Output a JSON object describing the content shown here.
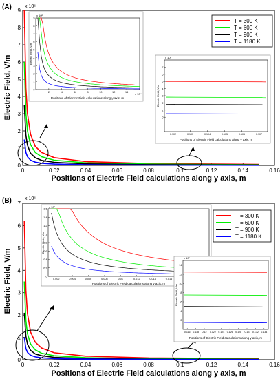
{
  "panels": [
    {
      "label": "(A)",
      "chart_data": {
        "type": "line",
        "xlabel": "Positions of Electric Field calculations along y axis, m",
        "ylabel": "Electric Field, V/m",
        "exponent": "x 10⁶",
        "xlim": [
          0,
          0.16
        ],
        "ylim": [
          0,
          9
        ],
        "xticks": [
          "0",
          "0.02",
          "0.04",
          "0.06",
          "0.08",
          "0.1",
          "0.12",
          "0.14",
          "0.16"
        ],
        "yticks": [
          "0",
          "1",
          "2",
          "3",
          "4",
          "5",
          "6",
          "7",
          "8",
          "9"
        ],
        "legend_position": "top-right",
        "series": [
          {
            "name": "T = 300 K",
            "color": "#ff0000",
            "x": [
              0.001,
              0.002,
              0.003,
              0.005,
              0.008,
              0.012,
              0.02,
              0.04,
              0.08,
              0.15
            ],
            "y": [
              9.0,
              4.5,
              3.0,
              1.8,
              1.1,
              0.75,
              0.45,
              0.22,
              0.11,
              0.06
            ]
          },
          {
            "name": "T = 600 K",
            "color": "#00ee00",
            "x": [
              0.001,
              0.002,
              0.003,
              0.005,
              0.008,
              0.012,
              0.02,
              0.04,
              0.08,
              0.15
            ],
            "y": [
              6.0,
              3.0,
              2.0,
              1.2,
              0.75,
              0.5,
              0.3,
              0.15,
              0.075,
              0.04
            ]
          },
          {
            "name": "T = 900 K",
            "color": "#000000",
            "x": [
              0.001,
              0.002,
              0.003,
              0.005,
              0.008,
              0.012,
              0.02,
              0.04,
              0.08,
              0.15
            ],
            "y": [
              3.5,
              1.75,
              1.17,
              0.7,
              0.44,
              0.29,
              0.18,
              0.09,
              0.045,
              0.025
            ]
          },
          {
            "name": "T = 1180 K",
            "color": "#0000ff",
            "x": [
              0.001,
              0.002,
              0.003,
              0.005,
              0.008,
              0.012,
              0.02,
              0.04,
              0.08,
              0.15
            ],
            "y": [
              1.5,
              0.75,
              0.5,
              0.3,
              0.19,
              0.125,
              0.075,
              0.04,
              0.02,
              0.01
            ]
          }
        ]
      },
      "inset_left": {
        "xlabel": "Positions of Electric Field calculations along y axis, m",
        "ylabel": "Electric Field, V/m",
        "exponent": "x 10⁶",
        "x_exponent": "x 10⁻³",
        "xlim": [
          0,
          16
        ],
        "ylim": [
          0,
          9
        ],
        "xticks": [
          "2",
          "4",
          "6",
          "8",
          "10",
          "12",
          "14"
        ],
        "yticks": [
          "0",
          "1",
          "2",
          "3",
          "4",
          "5",
          "6",
          "7",
          "8",
          "9"
        ]
      },
      "inset_right": {
        "xlabel": "Positions of Electric Field calculations along y axis, m",
        "ylabel": "Electric Field, V/m",
        "exponent": "x 10⁴",
        "xticks": [
          "0.102",
          "0.103",
          "0.104",
          "0.105",
          "0.106",
          "0.107"
        ],
        "yticks": [
          "0",
          "1",
          "2",
          "3",
          "4",
          "5",
          "6",
          "7"
        ],
        "levels": [
          5.0,
          2.8,
          1.8,
          0.5
        ]
      }
    },
    {
      "label": "(B)",
      "chart_data": {
        "type": "line",
        "xlabel": "Positions of Electric Field calculations along y axis, m",
        "ylabel": "Electric Field, V/m",
        "exponent": "x 10⁶",
        "xlim": [
          0,
          0.16
        ],
        "ylim": [
          0,
          7
        ],
        "xticks": [
          "0",
          "0.02",
          "0.04",
          "0.06",
          "0.08",
          "0.1",
          "0.12",
          "0.14",
          "0.16"
        ],
        "yticks": [
          "0",
          "1",
          "2",
          "3",
          "4",
          "5",
          "6",
          "7"
        ],
        "legend_position": "top-right",
        "series": [
          {
            "name": "T = 300 K",
            "color": "#ff0000",
            "x": [
              0.001,
              0.002,
              0.003,
              0.005,
              0.008,
              0.012,
              0.02,
              0.04,
              0.08,
              0.15
            ],
            "y": [
              6.2,
              3.1,
              2.07,
              1.24,
              0.78,
              0.52,
              0.31,
              0.16,
              0.08,
              0.05
            ]
          },
          {
            "name": "T = 600 K",
            "color": "#00ee00",
            "x": [
              0.001,
              0.002,
              0.003,
              0.005,
              0.008,
              0.012,
              0.02,
              0.04,
              0.08,
              0.15
            ],
            "y": [
              3.5,
              1.75,
              1.17,
              0.7,
              0.44,
              0.29,
              0.18,
              0.09,
              0.045,
              0.025
            ]
          },
          {
            "name": "T = 900 K",
            "color": "#000000",
            "x": [
              0.001,
              0.002,
              0.003,
              0.005,
              0.008,
              0.012,
              0.02,
              0.04,
              0.08,
              0.15
            ],
            "y": [
              2.1,
              1.05,
              0.7,
              0.42,
              0.26,
              0.18,
              0.105,
              0.05,
              0.026,
              0.014
            ]
          },
          {
            "name": "T = 1180 K",
            "color": "#0000ff",
            "x": [
              0.001,
              0.002,
              0.003,
              0.005,
              0.008,
              0.012,
              0.02,
              0.04,
              0.08,
              0.15
            ],
            "y": [
              1.0,
              0.5,
              0.33,
              0.2,
              0.125,
              0.083,
              0.05,
              0.025,
              0.0125,
              0.007
            ]
          }
        ]
      },
      "inset_left": {
        "xlabel": "Positions of Electric Field calculations along y axis, m",
        "ylabel": "Electric Field, V/m",
        "exponent": "x 10⁶",
        "x_exponent": "",
        "xlim": [
          0.001,
          0.021
        ],
        "ylim": [
          0,
          1.6
        ],
        "xticks": [
          "0.002",
          "0.004",
          "0.006",
          "0.008",
          "0.01",
          "0.012",
          "0.014",
          "0.016",
          "0.018",
          "0.02"
        ],
        "yticks": [
          "0",
          "0.2",
          "0.4",
          "0.6",
          "0.8",
          "1",
          "1.2",
          "1.4",
          "1.6"
        ]
      },
      "inset_right": {
        "xlabel": "Positions of Electric Field calculations along y axis, m",
        "ylabel": "Electric Field, V/m",
        "exponent": "x 10⁴",
        "xticks": [
          "0.116",
          "0.118",
          "0.12",
          "0.122",
          "0.124",
          "0.126",
          "0.128",
          "0.13",
          "0.132",
          "0.134"
        ],
        "yticks": [
          "2",
          "4",
          "6",
          "8",
          "10",
          "12",
          "14"
        ],
        "levels": [
          12.5,
          7.5,
          5.0,
          1.5
        ]
      }
    }
  ]
}
